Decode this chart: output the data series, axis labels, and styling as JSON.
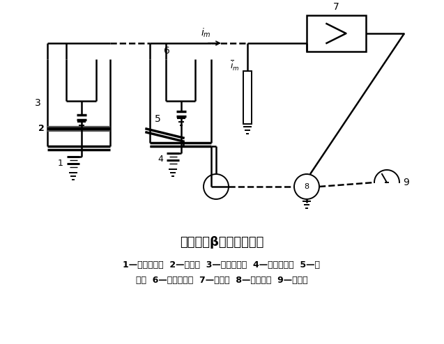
{
  "title": "双电离室β厚度计示意图",
  "caption_line1": "1—测量放射源  2—被测物  3—测量电离室  4—补偿放射源  5—补",
  "caption_line2": "偿极  6—补偿电离室  7—放大器  8—可逆电机  9—指示器",
  "bg_color": "#ffffff"
}
